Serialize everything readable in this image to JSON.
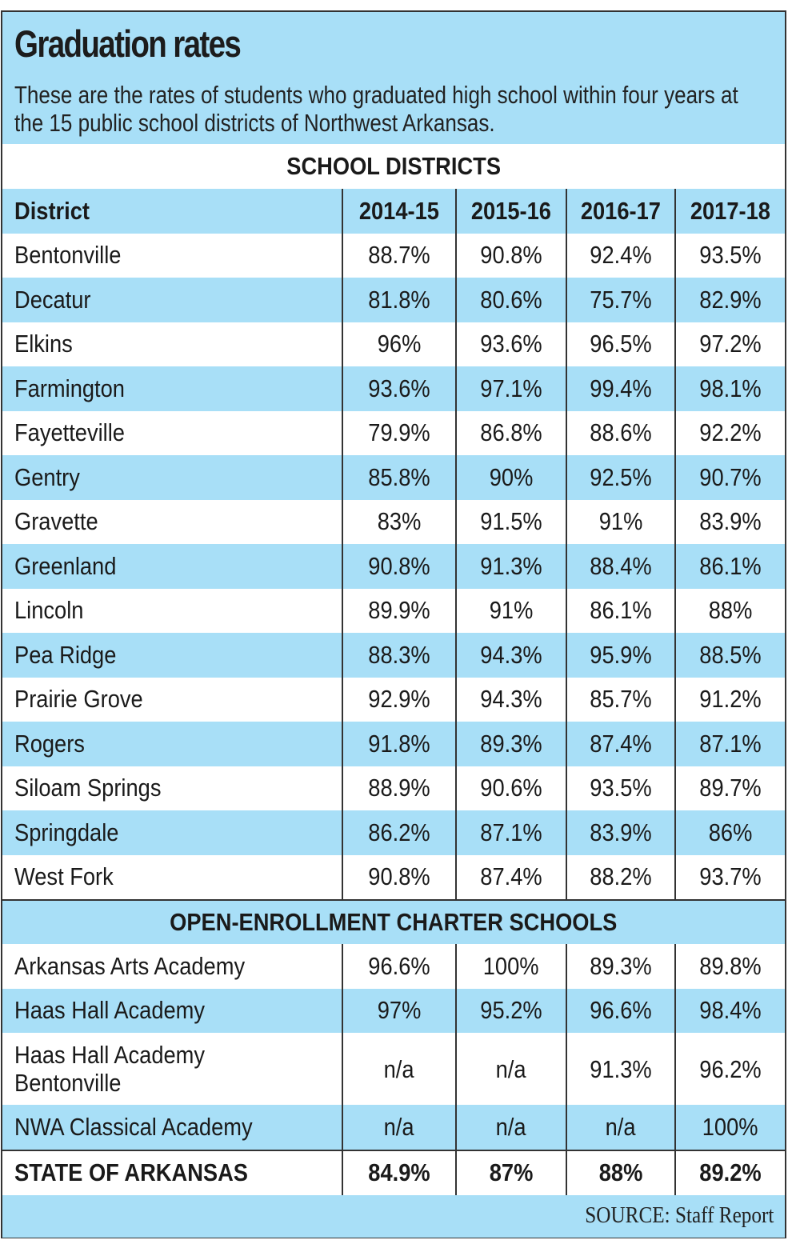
{
  "header": {
    "title": "Graduation rates",
    "description": "These are the rates of students who graduated high school within four years at the 15 public school districts of Northwest Arkansas."
  },
  "colors": {
    "accent_blue": "#a8dff7",
    "border": "#333333",
    "text": "#1a1a1a"
  },
  "sections": {
    "districts_title": "SCHOOL DISTRICTS",
    "charters_title": "OPEN-ENROLLMENT CHARTER SCHOOLS"
  },
  "columns": [
    "District",
    "2014-15",
    "2015-16",
    "2016-17",
    "2017-18"
  ],
  "districts": [
    {
      "name": "Bentonville",
      "values": [
        "88.7%",
        "90.8%",
        "92.4%",
        "93.5%"
      ]
    },
    {
      "name": "Decatur",
      "values": [
        "81.8%",
        "80.6%",
        "75.7%",
        "82.9%"
      ]
    },
    {
      "name": "Elkins",
      "values": [
        "96%",
        "93.6%",
        "96.5%",
        "97.2%"
      ]
    },
    {
      "name": "Farmington",
      "values": [
        "93.6%",
        "97.1%",
        "99.4%",
        "98.1%"
      ]
    },
    {
      "name": "Fayetteville",
      "values": [
        "79.9%",
        "86.8%",
        "88.6%",
        "92.2%"
      ]
    },
    {
      "name": "Gentry",
      "values": [
        "85.8%",
        "90%",
        "92.5%",
        "90.7%"
      ]
    },
    {
      "name": "Gravette",
      "values": [
        "83%",
        "91.5%",
        "91%",
        "83.9%"
      ]
    },
    {
      "name": "Greenland",
      "values": [
        "90.8%",
        "91.3%",
        "88.4%",
        "86.1%"
      ]
    },
    {
      "name": "Lincoln",
      "values": [
        "89.9%",
        "91%",
        "86.1%",
        "88%"
      ]
    },
    {
      "name": "Pea Ridge",
      "values": [
        "88.3%",
        "94.3%",
        "95.9%",
        "88.5%"
      ]
    },
    {
      "name": "Prairie Grove",
      "values": [
        "92.9%",
        "94.3%",
        "85.7%",
        "91.2%"
      ]
    },
    {
      "name": "Rogers",
      "values": [
        "91.8%",
        "89.3%",
        "87.4%",
        "87.1%"
      ]
    },
    {
      "name": "Siloam Springs",
      "values": [
        "88.9%",
        "90.6%",
        "93.5%",
        "89.7%"
      ]
    },
    {
      "name": "Springdale",
      "values": [
        "86.2%",
        "87.1%",
        "83.9%",
        "86%"
      ]
    },
    {
      "name": "West Fork",
      "values": [
        "90.8%",
        "87.4%",
        "88.2%",
        "93.7%"
      ]
    }
  ],
  "charters": [
    {
      "name": "Arkansas Arts Academy",
      "values": [
        "96.6%",
        "100%",
        "89.3%",
        "89.8%"
      ]
    },
    {
      "name": "Haas Hall Academy",
      "values": [
        "97%",
        "95.2%",
        "96.6%",
        "98.4%"
      ]
    },
    {
      "name": "Haas Hall Academy",
      "name_line2": "Bentonville",
      "values": [
        "n/a",
        "n/a",
        "91.3%",
        "96.2%"
      ]
    },
    {
      "name": "NWA Classical Academy",
      "values": [
        "n/a",
        "n/a",
        "n/a",
        "100%"
      ]
    }
  ],
  "state": {
    "name": "STATE OF ARKANSAS",
    "values": [
      "84.9%",
      "87%",
      "88%",
      "89.2%"
    ]
  },
  "footer": {
    "source": "SOURCE: Staff Report"
  },
  "chart_data": {
    "type": "table",
    "title": "Graduation rates",
    "subtitle": "These are the rates of students who graduated high school within four years at the 15 public school districts of Northwest Arkansas.",
    "columns": [
      "District",
      "2014-15",
      "2015-16",
      "2016-17",
      "2017-18"
    ],
    "groups": [
      {
        "name": "SCHOOL DISTRICTS",
        "rows": [
          [
            "Bentonville",
            88.7,
            90.8,
            92.4,
            93.5
          ],
          [
            "Decatur",
            81.8,
            80.6,
            75.7,
            82.9
          ],
          [
            "Elkins",
            96,
            93.6,
            96.5,
            97.2
          ],
          [
            "Farmington",
            93.6,
            97.1,
            99.4,
            98.1
          ],
          [
            "Fayetteville",
            79.9,
            86.8,
            88.6,
            92.2
          ],
          [
            "Gentry",
            85.8,
            90,
            92.5,
            90.7
          ],
          [
            "Gravette",
            83,
            91.5,
            91,
            83.9
          ],
          [
            "Greenland",
            90.8,
            91.3,
            88.4,
            86.1
          ],
          [
            "Lincoln",
            89.9,
            91,
            86.1,
            88
          ],
          [
            "Pea Ridge",
            88.3,
            94.3,
            95.9,
            88.5
          ],
          [
            "Prairie Grove",
            92.9,
            94.3,
            85.7,
            91.2
          ],
          [
            "Rogers",
            91.8,
            89.3,
            87.4,
            87.1
          ],
          [
            "Siloam Springs",
            88.9,
            90.6,
            93.5,
            89.7
          ],
          [
            "Springdale",
            86.2,
            87.1,
            83.9,
            86
          ],
          [
            "West Fork",
            90.8,
            87.4,
            88.2,
            93.7
          ]
        ]
      },
      {
        "name": "OPEN-ENROLLMENT CHARTER SCHOOLS",
        "rows": [
          [
            "Arkansas Arts Academy",
            96.6,
            100,
            89.3,
            89.8
          ],
          [
            "Haas Hall Academy",
            97,
            95.2,
            96.6,
            98.4
          ],
          [
            "Haas Hall Academy Bentonville",
            null,
            null,
            91.3,
            96.2
          ],
          [
            "NWA Classical Academy",
            null,
            null,
            null,
            100
          ]
        ]
      },
      {
        "name": "STATE",
        "rows": [
          [
            "STATE OF ARKANSAS",
            84.9,
            87,
            88,
            89.2
          ]
        ]
      }
    ],
    "units": "%",
    "source": "SOURCE: Staff Report"
  }
}
